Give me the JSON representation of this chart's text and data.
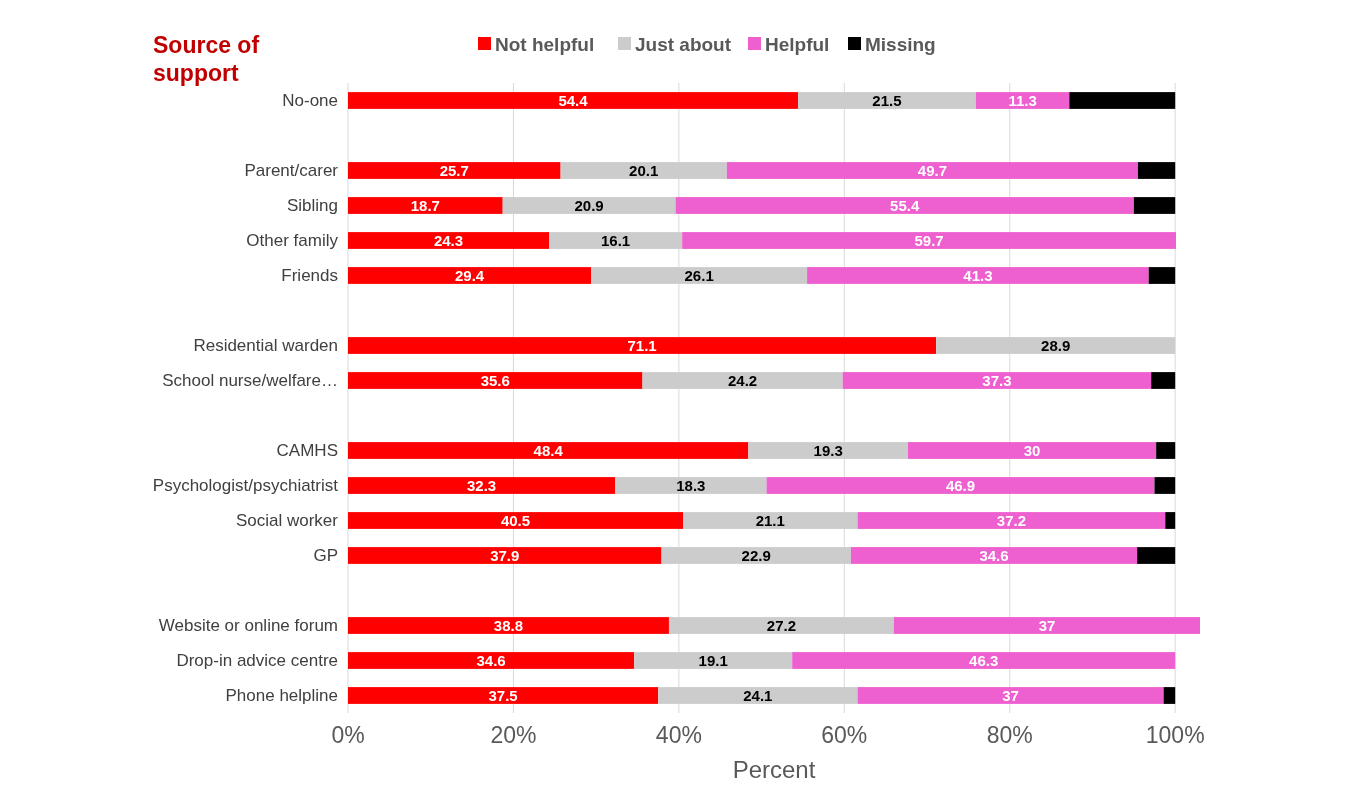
{
  "chart_data": {
    "type": "bar",
    "orientation": "horizontal",
    "stacked": true,
    "title": "Source of support",
    "xlabel": "Percent",
    "categories": [
      "No-one",
      null,
      "Parent/carer",
      "Sibling",
      "Other family",
      "Friends",
      null,
      "Residential warden",
      "School nurse/welfare…",
      null,
      "CAMHS",
      "Psychologist/psychiatrist",
      "Social worker",
      "GP",
      null,
      "Website or online forum",
      "Drop-in advice centre",
      "Phone helpline"
    ],
    "xlim": [
      0,
      103
    ],
    "xticks": [
      {
        "value": 0,
        "label": "0%"
      },
      {
        "value": 20,
        "label": "20%"
      },
      {
        "value": 40,
        "label": "40%"
      },
      {
        "value": 60,
        "label": "60%"
      },
      {
        "value": 80,
        "label": "80%"
      },
      {
        "value": 100,
        "label": "100%"
      }
    ],
    "grid": "x",
    "legend": "top",
    "series": [
      {
        "name": "Not helpful",
        "color": "#ff0000",
        "values": [
          54.4,
          null,
          25.7,
          18.7,
          24.3,
          29.4,
          null,
          71.1,
          35.6,
          null,
          48.4,
          32.3,
          40.5,
          37.9,
          null,
          38.8,
          34.6,
          37.5
        ],
        "value_labels": [
          "54.4",
          null,
          "25.7",
          "18.7",
          "24.3",
          "29.4",
          null,
          "71.1",
          "35.6",
          null,
          "48.4",
          "32.3",
          "40.5",
          "37.9",
          null,
          "38.8",
          "34.6",
          "37.5"
        ]
      },
      {
        "name": "Just about",
        "color": "#cccccc",
        "values": [
          21.5,
          null,
          20.1,
          20.9,
          16.1,
          26.1,
          null,
          28.9,
          24.2,
          null,
          19.3,
          18.3,
          21.1,
          22.9,
          null,
          27.2,
          19.1,
          24.1
        ],
        "value_labels": [
          "21.5",
          null,
          "20.1",
          "20.9",
          "16.1",
          "26.1",
          null,
          "28.9",
          "24.2",
          null,
          "19.3",
          "18.3",
          "21.1",
          "22.9",
          null,
          "27.2",
          "19.1",
          "24.1"
        ]
      },
      {
        "name": "Helpful",
        "color": "#ee5fcf",
        "values": [
          11.3,
          null,
          49.7,
          55.4,
          59.7,
          41.3,
          null,
          null,
          37.3,
          null,
          30,
          46.9,
          37.2,
          34.6,
          null,
          37,
          46.3,
          37
        ],
        "value_labels": [
          "11.3",
          null,
          "49.7",
          "55.4",
          "59.7",
          "41.3",
          null,
          null,
          "37.3",
          null,
          "30",
          "46.9",
          "37.2",
          "34.6",
          null,
          "37",
          "46.3",
          "37"
        ]
      },
      {
        "name": "Missing",
        "color": "#000000",
        "values": [
          12.8,
          null,
          4.5,
          5.0,
          null,
          3.2,
          null,
          null,
          2.9,
          null,
          2.3,
          2.5,
          1.2,
          4.6,
          null,
          null,
          null,
          1.4
        ]
      }
    ]
  }
}
